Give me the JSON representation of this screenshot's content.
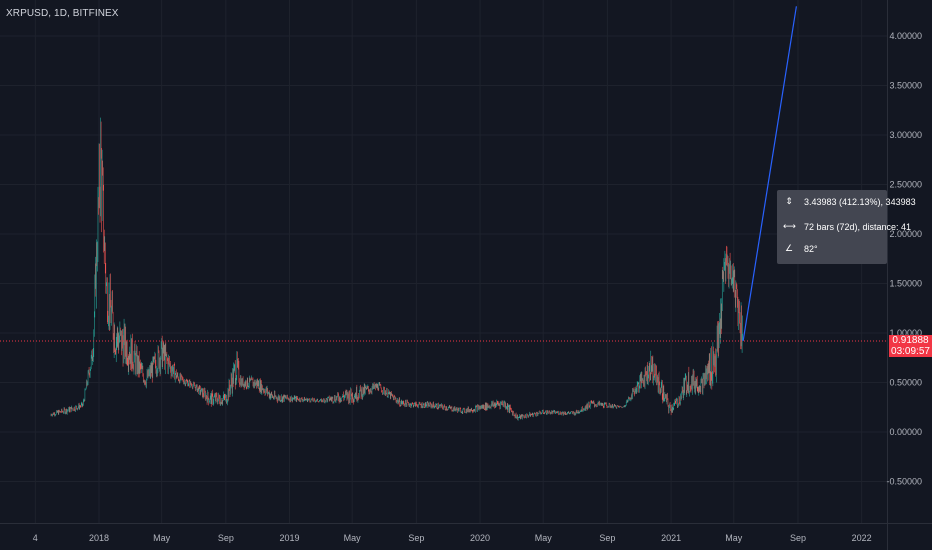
{
  "header": {
    "symbol": "XRPUSD, 1D, BITFINEX"
  },
  "colors": {
    "background": "#131722",
    "grid": "#1e222d",
    "up": "#26a69a",
    "down": "#ef5350",
    "axis_text": "#b2b5be",
    "last_price_line": "#f23645",
    "measure_line": "#2962ff",
    "measure_box": "#434651"
  },
  "price_label": {
    "value": "0.91888",
    "countdown": "03:09:57"
  },
  "measure": {
    "price_change": "3.43983 (412.13%), 343983",
    "bars": "72 bars (72d), distance: 41",
    "angle": "82°",
    "icons": [
      "vertical-range-icon",
      "horizontal-range-icon",
      "angle-icon"
    ]
  },
  "chart_data": {
    "type": "candlestick",
    "title": "XRPUSD, 1D, BITFINEX",
    "y_ticks": [
      "4.00000",
      "3.50000",
      "3.00000",
      "2.50000",
      "2.00000",
      "1.50000",
      "1.00000",
      "0.50000",
      "0.00000",
      "-0.50000"
    ],
    "x_ticks": [
      "4",
      "2018",
      "May",
      "Sep",
      "2019",
      "May",
      "Sep",
      "2020",
      "May",
      "Sep",
      "2021",
      "May",
      "Sep",
      "2022"
    ],
    "ylim": [
      -0.9,
      4.3
    ],
    "last_price": 0.91888,
    "series": [
      {
        "values": [
          [
            "2017-10-01",
            0.2,
            0.16
          ],
          [
            "2017-11-01",
            0.25,
            0.19
          ],
          [
            "2017-12-01",
            0.3,
            0.24
          ],
          [
            "2017-12-20",
            0.9,
            0.7
          ],
          [
            "2018-01-04",
            3.3,
            2.3
          ],
          [
            "2018-01-15",
            1.7,
            1.2
          ],
          [
            "2018-02-01",
            1.2,
            0.75
          ],
          [
            "2018-03-01",
            1.0,
            0.65
          ],
          [
            "2018-04-01",
            0.6,
            0.45
          ],
          [
            "2018-05-01",
            0.95,
            0.65
          ],
          [
            "2018-06-01",
            0.6,
            0.5
          ],
          [
            "2018-07-01",
            0.5,
            0.44
          ],
          [
            "2018-08-01",
            0.4,
            0.27
          ],
          [
            "2018-09-01",
            0.4,
            0.27
          ],
          [
            "2018-09-21",
            0.8,
            0.5
          ],
          [
            "2018-10-01",
            0.55,
            0.45
          ],
          [
            "2018-11-01",
            0.55,
            0.43
          ],
          [
            "2018-12-01",
            0.4,
            0.3
          ],
          [
            "2019-01-01",
            0.37,
            0.31
          ],
          [
            "2019-03-01",
            0.33,
            0.3
          ],
          [
            "2019-05-01",
            0.45,
            0.3
          ],
          [
            "2019-06-20",
            0.5,
            0.42
          ],
          [
            "2019-08-01",
            0.33,
            0.26
          ],
          [
            "2019-09-01",
            0.3,
            0.25
          ],
          [
            "2019-10-01",
            0.3,
            0.24
          ],
          [
            "2019-12-01",
            0.24,
            0.19
          ],
          [
            "2020-02-15",
            0.34,
            0.25
          ],
          [
            "2020-03-13",
            0.17,
            0.12
          ],
          [
            "2020-05-01",
            0.22,
            0.18
          ],
          [
            "2020-07-01",
            0.21,
            0.17
          ],
          [
            "2020-08-01",
            0.32,
            0.25
          ],
          [
            "2020-10-01",
            0.26,
            0.24
          ],
          [
            "2020-11-24",
            0.78,
            0.55
          ],
          [
            "2020-12-29",
            0.3,
            0.17
          ],
          [
            "2021-01-15",
            0.35,
            0.26
          ],
          [
            "2021-02-01",
            0.65,
            0.4
          ],
          [
            "2021-03-01",
            0.55,
            0.4
          ],
          [
            "2021-04-01",
            1.1,
            0.55
          ],
          [
            "2021-04-14",
            1.96,
            1.5
          ],
          [
            "2021-05-01",
            1.7,
            1.4
          ],
          [
            "2021-05-18",
            1.2,
            0.75
          ]
        ]
      }
    ],
    "measure_line": {
      "from": [
        "2021-05-19",
        0.92
      ],
      "to": [
        "2021-08-29",
        4.3
      ]
    }
  }
}
